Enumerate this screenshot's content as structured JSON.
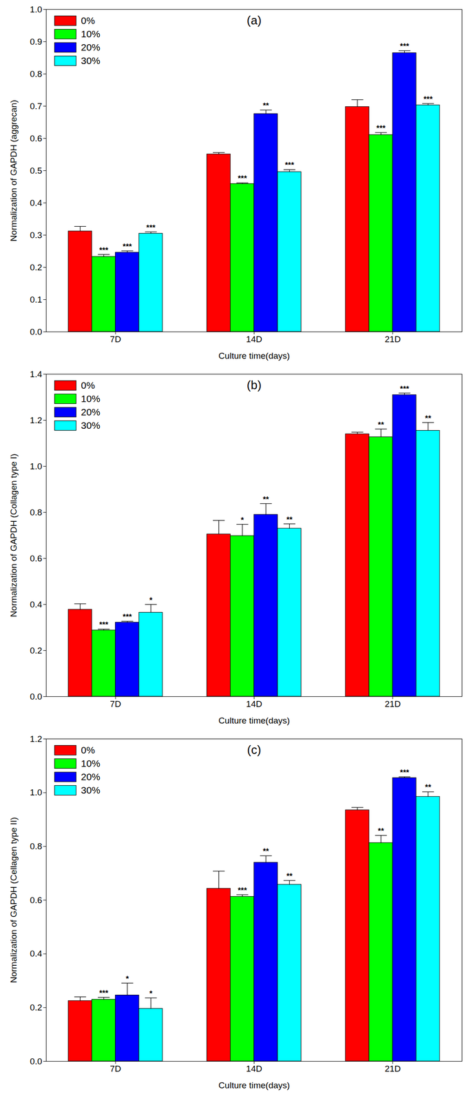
{
  "chart_data": [
    {
      "type": "bar",
      "title": "(a)",
      "x_label": "Culture time(days)",
      "y_label": "Normalization of GAPDH (aggrecan)",
      "categories": [
        "7D",
        "14D",
        "21D"
      ],
      "series": [
        {
          "name": "0%",
          "color": "#ff0000",
          "values": [
            0.312,
            0.551,
            0.698
          ],
          "errors": [
            0.015,
            0.005,
            0.022
          ]
        },
        {
          "name": "10%",
          "color": "#00ff00",
          "values": [
            0.233,
            0.459,
            0.611
          ],
          "errors": [
            0.007,
            0.003,
            0.007
          ],
          "significance": [
            "***",
            "***",
            "***"
          ]
        },
        {
          "name": "20%",
          "color": "#0000ff",
          "values": [
            0.246,
            0.676,
            0.865
          ],
          "errors": [
            0.005,
            0.012,
            0.007
          ],
          "significance": [
            "***",
            "**",
            "***"
          ]
        },
        {
          "name": "30%",
          "color": "#00ffff",
          "values": [
            0.305,
            0.496,
            0.703
          ],
          "errors": [
            0.005,
            0.007,
            0.005
          ],
          "significance": [
            "***",
            "***",
            "***"
          ]
        }
      ],
      "ylim": [
        0,
        1.0
      ],
      "yticks": [
        {
          "value": 0,
          "label": "0.0"
        },
        0.1,
        0.2,
        0.3,
        0.4,
        0.5,
        0.6,
        0.7,
        0.8,
        0.9,
        {
          "value": 1,
          "label": "1.0"
        }
      ],
      "legend": "upper left"
    },
    {
      "type": "bar",
      "title": "(b)",
      "x_label": "Culture time(days)",
      "y_label": "Normalization of GAPDH (Collagen type I)",
      "categories": [
        "7D",
        "14D",
        "21D"
      ],
      "series": [
        {
          "name": "0%",
          "color": "#ff0000",
          "values": [
            0.378,
            0.705,
            1.14
          ],
          "errors": [
            0.025,
            0.06,
            0.008
          ]
        },
        {
          "name": "10%",
          "color": "#00ff00",
          "values": [
            0.288,
            0.698,
            1.127
          ],
          "errors": [
            0.005,
            0.05,
            0.035
          ],
          "significance": [
            "***",
            "*",
            "**"
          ]
        },
        {
          "name": "20%",
          "color": "#0000ff",
          "values": [
            0.322,
            0.79,
            1.31
          ],
          "errors": [
            0.005,
            0.048,
            0.008
          ],
          "significance": [
            "***",
            "**",
            "***"
          ]
        },
        {
          "name": "30%",
          "color": "#00ffff",
          "values": [
            0.365,
            0.73,
            1.155
          ],
          "errors": [
            0.035,
            0.02,
            0.035
          ],
          "significance": [
            "*",
            "**",
            "**"
          ]
        }
      ],
      "ylim": [
        0,
        1.4
      ],
      "yticks": [
        {
          "value": 0,
          "label": "0.0"
        },
        0.2,
        0.4,
        0.6,
        0.8,
        {
          "value": 1,
          "label": "1.0"
        },
        1.2,
        1.4
      ],
      "legend": "upper left"
    },
    {
      "type": "bar",
      "title": "(c)",
      "x_label": "Culture time(days)",
      "y_label": "Normalization of GAPDH (Cellagen type II)",
      "categories": [
        "7D",
        "14D",
        "21D"
      ],
      "series": [
        {
          "name": "0%",
          "color": "#ff0000",
          "values": [
            0.225,
            0.643,
            0.935
          ],
          "errors": [
            0.015,
            0.065,
            0.01
          ]
        },
        {
          "name": "10%",
          "color": "#00ff00",
          "values": [
            0.23,
            0.613,
            0.813
          ],
          "errors": [
            0.008,
            0.007,
            0.028
          ],
          "significance": [
            "***",
            "***",
            "**"
          ]
        },
        {
          "name": "20%",
          "color": "#0000ff",
          "values": [
            0.246,
            0.74,
            1.055
          ],
          "errors": [
            0.045,
            0.025,
            0.004
          ],
          "significance": [
            "*",
            "**",
            "***"
          ]
        },
        {
          "name": "30%",
          "color": "#00ffff",
          "values": [
            0.196,
            0.658,
            0.985
          ],
          "errors": [
            0.04,
            0.015,
            0.018
          ],
          "significance": [
            "*",
            "**",
            "**"
          ]
        }
      ],
      "ylim": [
        0,
        1.2
      ],
      "yticks": [
        {
          "value": 0,
          "label": "0.0"
        },
        0.2,
        0.4,
        0.6,
        0.8,
        {
          "value": 1,
          "label": "1.0"
        },
        1.2
      ],
      "legend": "upper left"
    }
  ]
}
